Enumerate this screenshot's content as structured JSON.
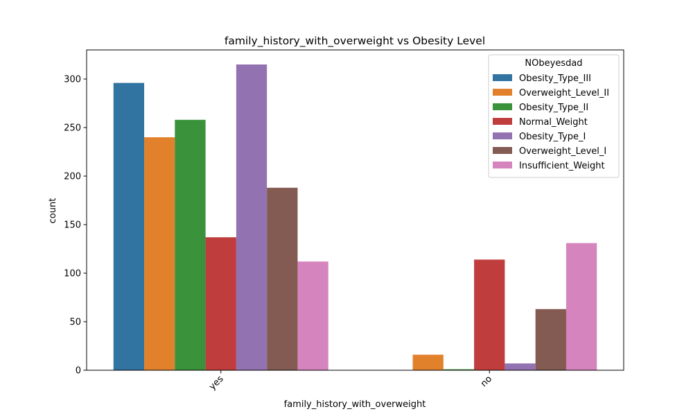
{
  "chart_data": {
    "type": "bar",
    "title": "family_history_with_overweight vs Obesity Level",
    "xlabel": "family_history_with_overweight",
    "ylabel": "count",
    "categories": [
      "yes",
      "no"
    ],
    "ylim": [
      0,
      330
    ],
    "yticks": [
      0,
      50,
      100,
      150,
      200,
      250,
      300
    ],
    "grid": false,
    "legend": {
      "title": "NObeyesdad",
      "placement": "top-right"
    },
    "series": [
      {
        "name": "Obesity_Type_III",
        "color": "#3274a1",
        "values": [
          296,
          0
        ]
      },
      {
        "name": "Overweight_Level_II",
        "color": "#e1812c",
        "values": [
          240,
          16
        ]
      },
      {
        "name": "Obesity_Type_II",
        "color": "#3a923a",
        "values": [
          258,
          1
        ]
      },
      {
        "name": "Normal_Weight",
        "color": "#c03d3e",
        "values": [
          137,
          114
        ]
      },
      {
        "name": "Obesity_Type_I",
        "color": "#9372b2",
        "values": [
          315,
          7
        ]
      },
      {
        "name": "Overweight_Level_I",
        "color": "#845b53",
        "values": [
          188,
          63
        ]
      },
      {
        "name": "Insufficient_Weight",
        "color": "#d684bd",
        "values": [
          112,
          131
        ]
      }
    ]
  }
}
